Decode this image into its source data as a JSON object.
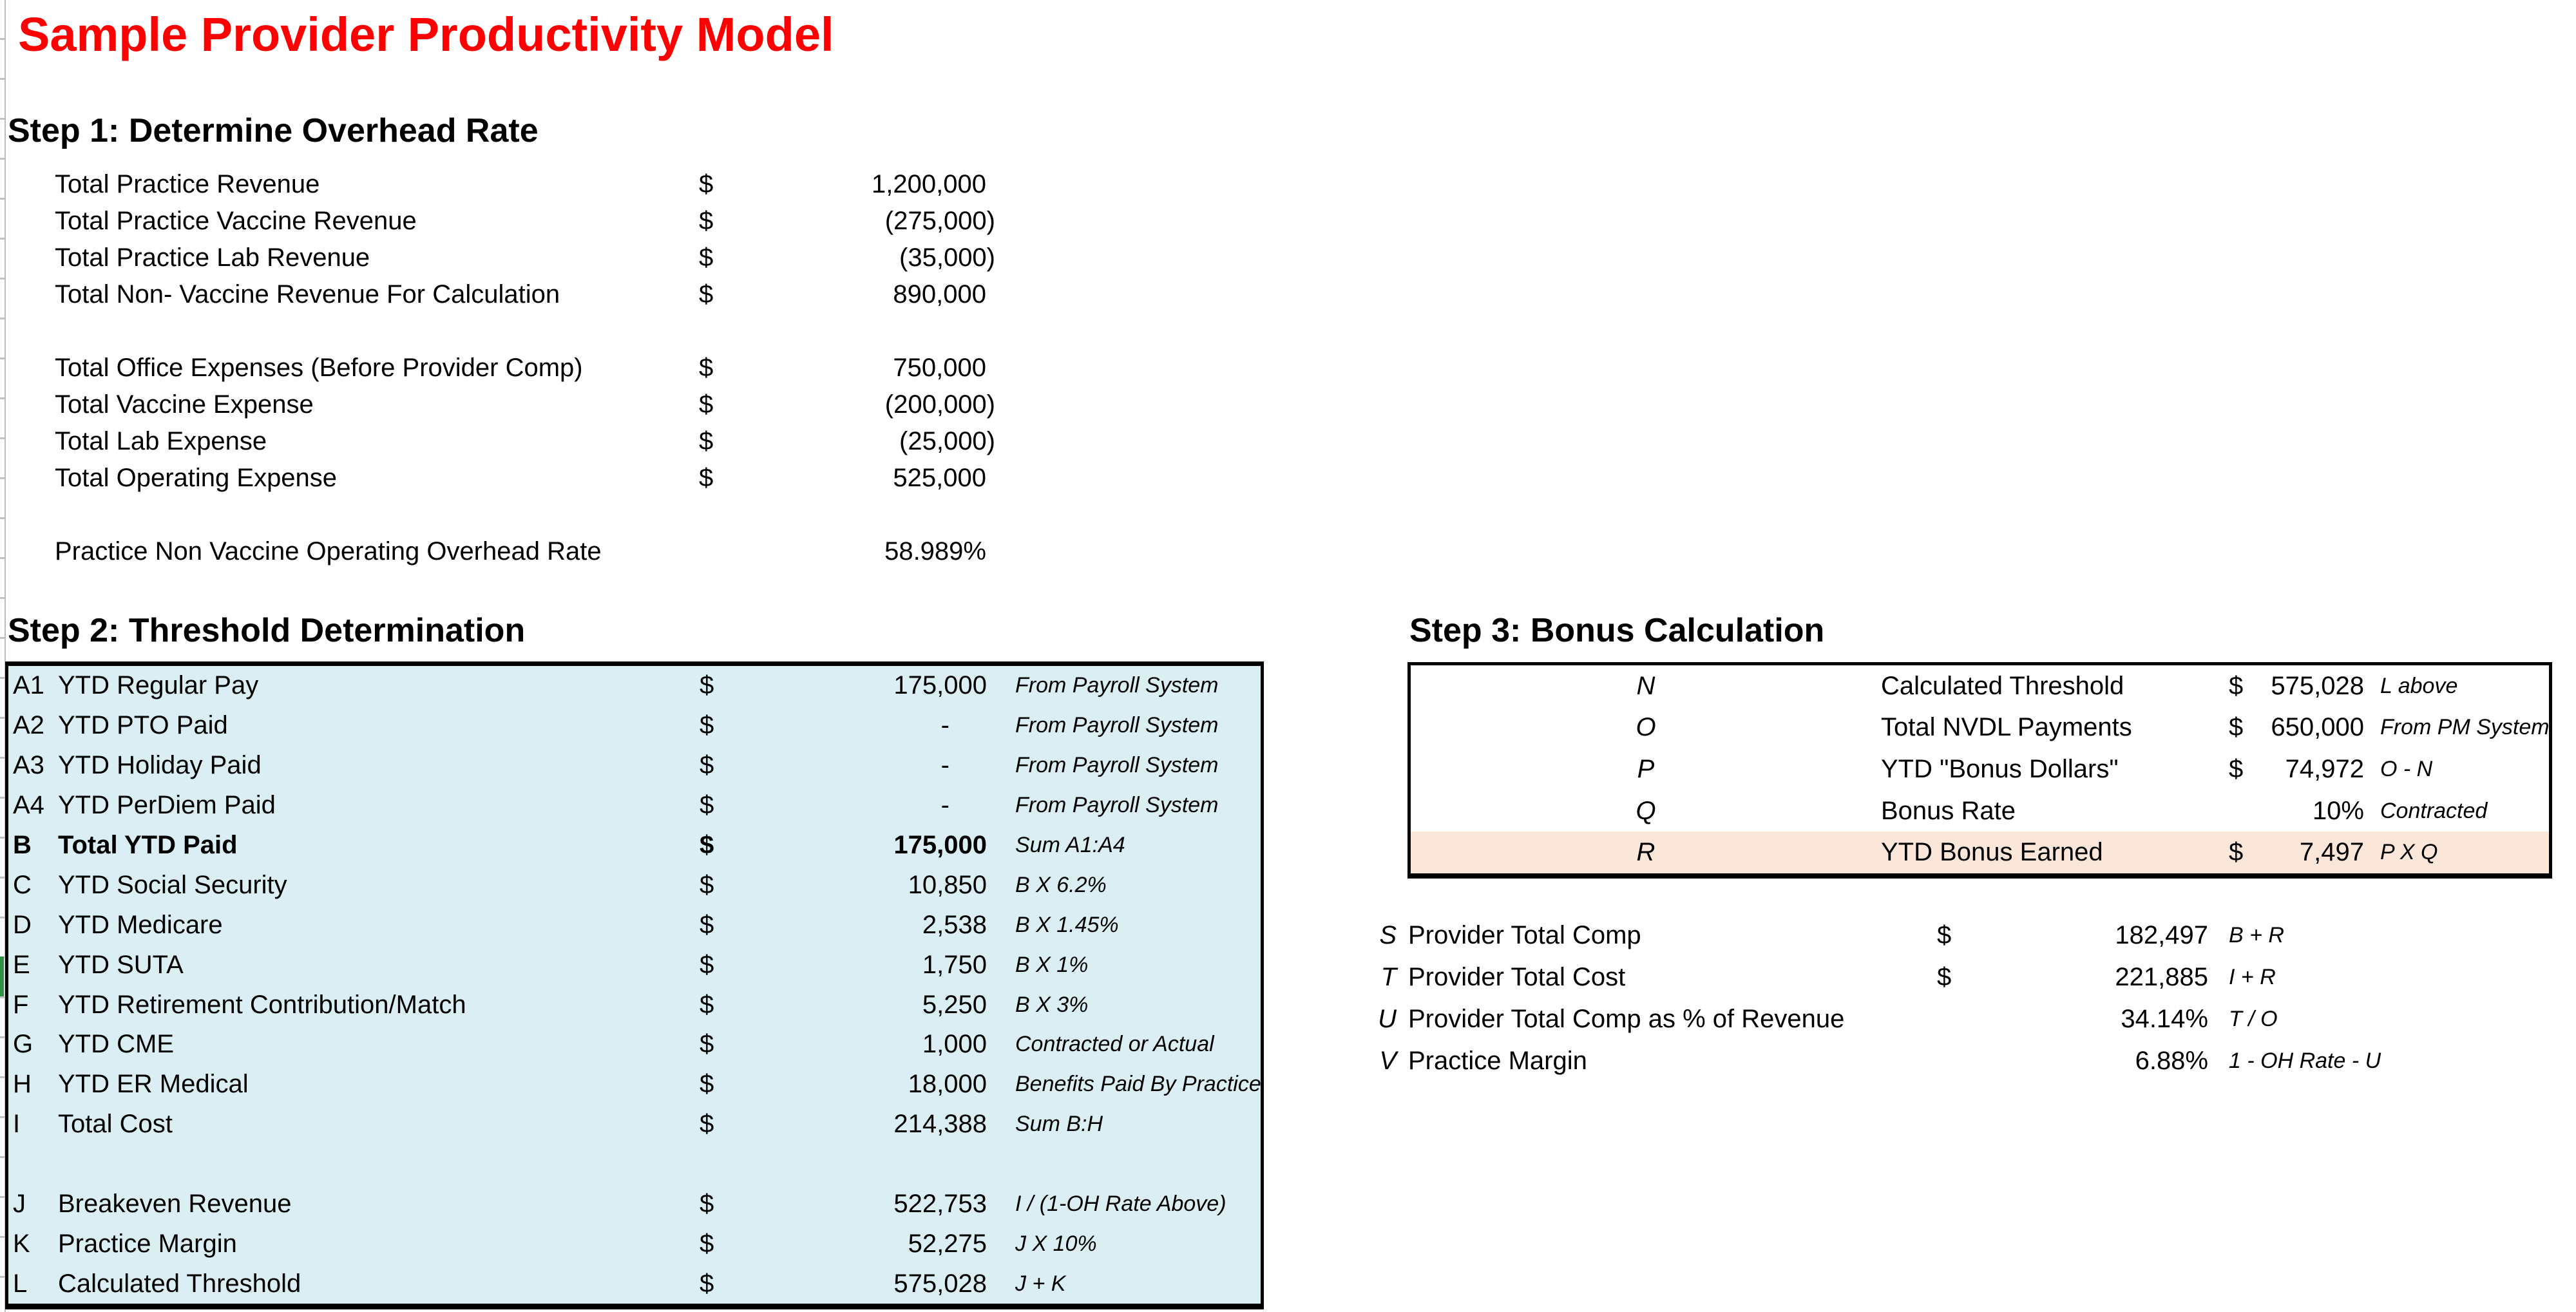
{
  "sheet_title": "Sample Provider Productivity Model",
  "colors": {
    "title_accent": "#FF0000",
    "step2_table_fill": "#DAEEF3",
    "bonus_row_highlight": "#FBE7D9",
    "table_border": "#000000"
  },
  "step1": {
    "heading": "Step 1: Determine Overhead Rate",
    "rows": [
      {
        "label": "Total Practice Revenue",
        "cur": "$",
        "val": "1,200,000"
      },
      {
        "label": "Total Practice Vaccine Revenue",
        "cur": "$",
        "val": "(275,000)"
      },
      {
        "label": "Total Practice Lab Revenue",
        "cur": "$",
        "val": "(35,000)"
      },
      {
        "label": "Total Non- Vaccine Revenue For Calculation",
        "cur": "$",
        "val": "890,000"
      },
      {
        "spacer": true
      },
      {
        "label": "Total Office Expenses (Before Provider Comp)",
        "cur": "$",
        "val": "750,000"
      },
      {
        "label": "Total Vaccine Expense",
        "cur": "$",
        "val": "(200,000)"
      },
      {
        "label": "Total Lab Expense",
        "cur": "$",
        "val": "(25,000)"
      },
      {
        "label": "Total Operating Expense",
        "cur": "$",
        "val": "525,000"
      },
      {
        "spacer": true
      },
      {
        "label": "Practice Non Vaccine Operating Overhead Rate",
        "cur": "",
        "val": "58.989%"
      }
    ]
  },
  "step2": {
    "heading": "Step 2: Threshold Determination",
    "rows": [
      {
        "id": "A1",
        "label": "YTD Regular Pay",
        "cur": "$",
        "val": "175,000",
        "note": "From Payroll System"
      },
      {
        "id": "A2",
        "label": "YTD PTO Paid",
        "cur": "$",
        "val": "-",
        "note": "From Payroll System"
      },
      {
        "id": "A3",
        "label": "YTD Holiday Paid",
        "cur": "$",
        "val": "-",
        "note": "From Payroll System"
      },
      {
        "id": "A4",
        "label": "YTD PerDiem Paid",
        "cur": "$",
        "val": "-",
        "note": "From Payroll System"
      },
      {
        "id": "B",
        "label": "Total YTD Paid",
        "cur": "$",
        "val": "175,000",
        "note": "Sum A1:A4",
        "bold": true
      },
      {
        "id": "C",
        "label": "YTD Social Security",
        "cur": "$",
        "val": "10,850",
        "note": "B X 6.2%"
      },
      {
        "id": "D",
        "label": "YTD Medicare",
        "cur": "$",
        "val": "2,538",
        "note": "B X 1.45%"
      },
      {
        "id": "E",
        "label": "YTD SUTA",
        "cur": "$",
        "val": "1,750",
        "note": "B X 1%"
      },
      {
        "id": "F",
        "label": "YTD Retirement Contribution/Match",
        "cur": "$",
        "val": "5,250",
        "note": "B X 3%"
      },
      {
        "id": "G",
        "label": "YTD CME",
        "cur": "$",
        "val": "1,000",
        "note": "Contracted or Actual"
      },
      {
        "id": "H",
        "label": "YTD ER Medical",
        "cur": "$",
        "val": "18,000",
        "note": "Benefits Paid By Practice"
      },
      {
        "id": "I",
        "label": "Total Cost",
        "cur": "$",
        "val": "214,388",
        "note": "Sum B:H"
      },
      {
        "spacer": true
      },
      {
        "id": "J",
        "label": "Breakeven Revenue",
        "cur": "$",
        "val": "522,753",
        "note": "I / (1-OH Rate Above)"
      },
      {
        "id": "K",
        "label": "Practice Margin",
        "cur": "$",
        "val": "52,275",
        "note": "J X 10%"
      },
      {
        "id": "L",
        "label": "Calculated Threshold",
        "cur": "$",
        "val": "575,028",
        "note": "J + K"
      }
    ]
  },
  "step3": {
    "heading": "Step 3: Bonus Calculation",
    "table_rows": [
      {
        "id": "N",
        "label": "Calculated Threshold",
        "cur": "$",
        "val": "575,028",
        "note": "L above"
      },
      {
        "id": "O",
        "label": "Total NVDL Payments",
        "cur": "$",
        "val": "650,000",
        "note": "From PM System"
      },
      {
        "id": "P",
        "label": "YTD \"Bonus Dollars\"",
        "cur": "$",
        "val": "74,972",
        "note": "O - N"
      },
      {
        "id": "Q",
        "label": "Bonus Rate",
        "cur": "",
        "val": "10%",
        "note": "Contracted"
      },
      {
        "id": "R",
        "label": "YTD Bonus Earned",
        "cur": "$",
        "val": "7,497",
        "note": "P X Q",
        "fill": true
      }
    ],
    "summary_rows": [
      {
        "id": "S",
        "label": "Provider Total Comp",
        "cur": "$",
        "val": "182,497",
        "note": "B + R"
      },
      {
        "id": "T",
        "label": "Provider Total Cost",
        "cur": "$",
        "val": "221,885",
        "note": "I + R"
      },
      {
        "id": "U",
        "label": "Provider Total Comp as % of Revenue",
        "cur": "",
        "val": "34.14%",
        "note": "T / O"
      },
      {
        "id": "V",
        "label": "Practice Margin",
        "cur": "",
        "val": "6.88%",
        "note": "1 - OH Rate - U"
      }
    ]
  }
}
